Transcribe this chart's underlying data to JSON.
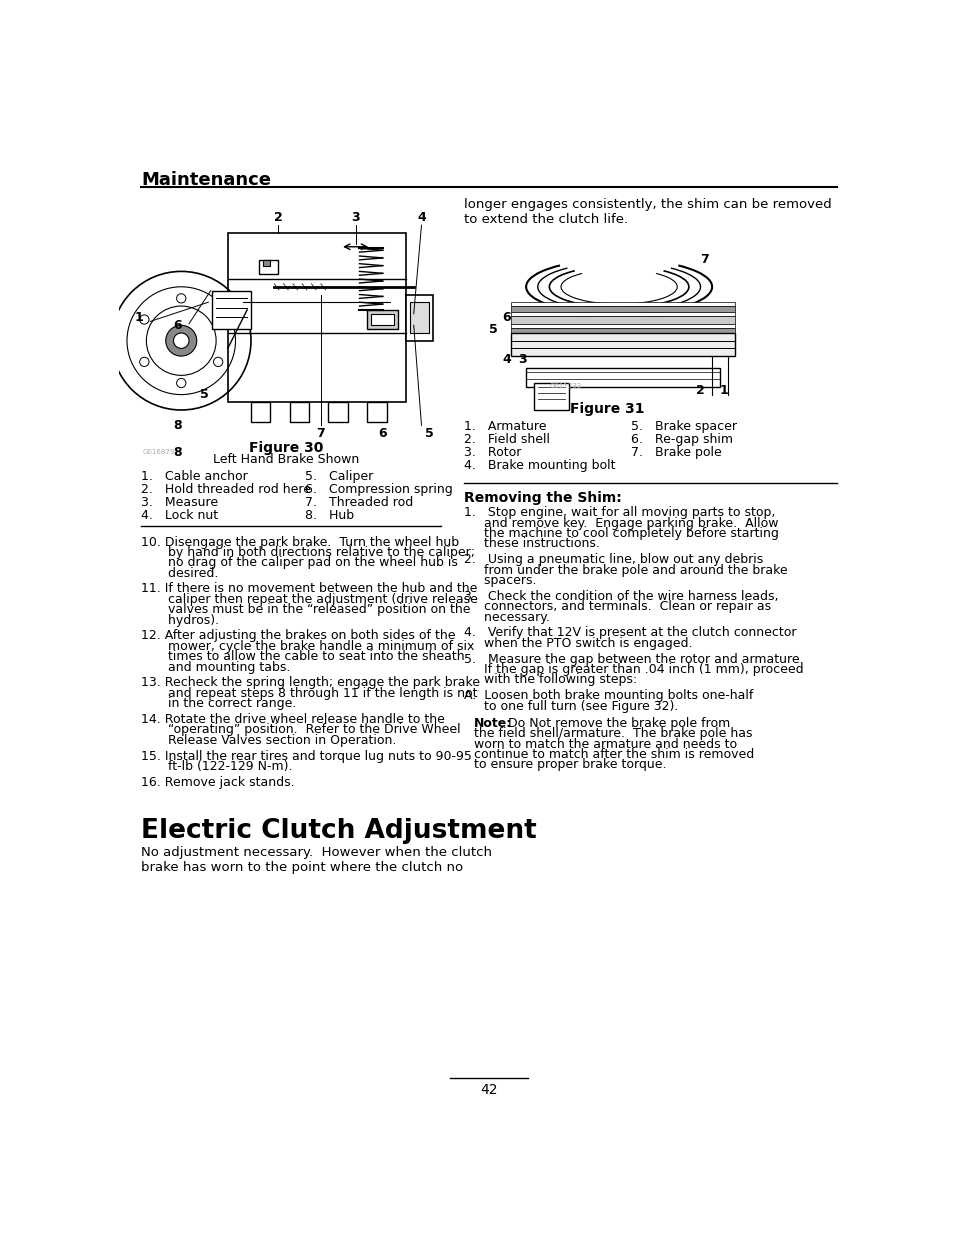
{
  "page_bg": "#ffffff",
  "header_title": "Maintenance",
  "section_title": "Electric Clutch Adjustment",
  "page_number": "42",
  "fig30_caption": "Figure 30",
  "fig30_subcaption": "Left Hand Brake Shown",
  "fig30_items_left": [
    "1.   Cable anchor",
    "2.   Hold threaded rod here",
    "3.   Measure",
    "4.   Lock nut"
  ],
  "fig30_items_right": [
    "5.   Caliper",
    "6.   Compression spring",
    "7.   Threaded rod",
    "8.   Hub"
  ],
  "fig31_caption": "Figure 31",
  "fig31_items_left": [
    "1.   Armature",
    "2.   Field shell",
    "3.   Rotor",
    "4.   Brake mounting bolt"
  ],
  "fig31_items_right": [
    "5.   Brake spacer",
    "6.   Re-gap shim",
    "7.   Brake pole"
  ],
  "right_intro": "longer engages consistently, the shim can be removed\nto extend the clutch life.",
  "numbered_items_left": [
    "10. Disengage the park brake.  Turn the wheel hub\n    by hand in both directions relative to the caliper;\n    no drag of the caliper pad on the wheel hub is\n    desired.",
    "11. If there is no movement between the hub and the\n    caliper then repeat the adjustment (drive release\n    valves must be in the “released” position on the\n    hydros).",
    "12. After adjusting the brakes on both sides of the\n    mower, cycle the brake handle a minimum of six\n    times to allow the cable to seat into the sheath\n    and mounting tabs.",
    "13. Recheck the spring length; engage the park brake\n    and repeat steps 8 through 11 if the length is not\n    in the correct range.",
    "14. Rotate the drive wheel release handle to the\n    “operating” position.  Refer to the Drive Wheel\n    Release Valves section in Operation.",
    "15. Install the rear tires and torque lug nuts to 90-95\n    ft-lb (122-129 N-m).",
    "16. Remove jack stands."
  ],
  "removing_shim_title": "Removing the Shim:",
  "removing_shim_items": [
    "1.   Stop engine, wait for all moving parts to stop,\n     and remove key.  Engage parking brake.  Allow\n     the machine to cool completely before starting\n     these instructions.",
    "2.   Using a pneumatic line, blow out any debris\n     from under the brake pole and around the brake\n     spacers.",
    "3.   Check the condition of the wire harness leads,\n     connectors, and terminals.  Clean or repair as\n     necessary.",
    "4.   Verify that 12V is present at the clutch connector\n     when the PTO switch is engaged.",
    "5.   Measure the gap between the rotor and armature.\n     If the gap is greater than .04 inch (1 mm), proceed\n     with the following steps:",
    "A.  Loosen both brake mounting bolts one-half\n     to one full turn (see Figure 32)."
  ],
  "note_bold": "Note:",
  "note_text": "  Do Not remove the brake pole from\nthe field shell/armature.  The brake pole has\nworn to match the armature and needs to\ncontinue to match after the shim is removed\nto ensure proper brake torque.",
  "elec_clutch_intro": "No adjustment necessary.  However when the clutch\nbrake has worn to the point where the clutch no"
}
